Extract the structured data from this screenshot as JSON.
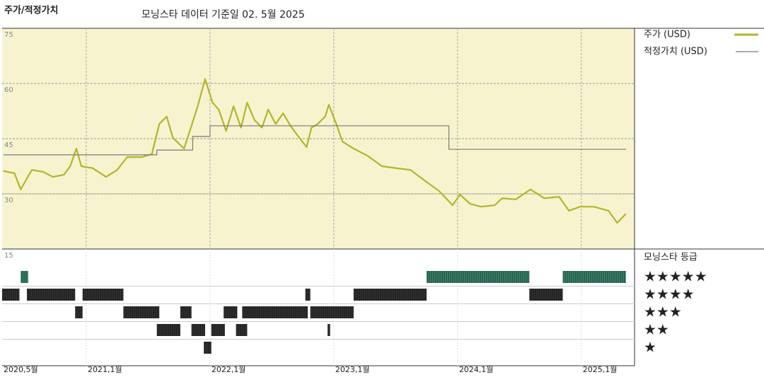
{
  "chart_data": {
    "type": "line",
    "title": "주가/적정가치",
    "subtitle": "모닝스타 데이터 기준일 02. 5월 2025",
    "xlim": [
      2020.32,
      2025.43
    ],
    "xticks": [
      {
        "value": 2020.33,
        "label": "2020,5월"
      },
      {
        "value": 2021,
        "label": "2021,1월"
      },
      {
        "value": 2022,
        "label": "2022,1월"
      },
      {
        "value": 2023,
        "label": "2023,1월"
      },
      {
        "value": 2024,
        "label": "2024,1월"
      },
      {
        "value": 2025,
        "label": "2025,1월"
      }
    ],
    "ylim": [
      15,
      75
    ],
    "yticks": [
      15,
      30,
      45,
      60,
      75
    ],
    "grid": true,
    "series": [
      {
        "name": "주가 (USD)",
        "color": "#b3b52a",
        "x": [
          2020.33,
          2020.42,
          2020.47,
          2020.56,
          2020.65,
          2020.73,
          2020.82,
          2020.87,
          2020.92,
          2020.96,
          2021.05,
          2021.16,
          2021.25,
          2021.33,
          2021.45,
          2021.53,
          2021.59,
          2021.65,
          2021.7,
          2021.79,
          2021.85,
          2021.9,
          2021.96,
          2022.02,
          2022.07,
          2022.13,
          2022.19,
          2022.25,
          2022.3,
          2022.36,
          2022.42,
          2022.47,
          2022.53,
          2022.59,
          2022.65,
          2022.7,
          2022.78,
          2022.82,
          2022.87,
          2022.93,
          2022.96,
          2023.02,
          2023.07,
          2023.16,
          2023.27,
          2023.39,
          2023.5,
          2023.62,
          2023.73,
          2023.85,
          2023.96,
          2024.02,
          2024.1,
          2024.19,
          2024.3,
          2024.36,
          2024.47,
          2024.59,
          2024.7,
          2024.82,
          2024.9,
          2024.99,
          2025.1,
          2025.22,
          2025.29,
          2025.36
        ],
        "values": [
          36.2,
          35.6,
          31.2,
          36.5,
          36,
          34.6,
          35.2,
          37.5,
          42.3,
          37.5,
          37,
          34.6,
          36.5,
          40,
          40,
          40.8,
          49,
          51,
          45.2,
          42.3,
          48.5,
          53.8,
          61.2,
          54.8,
          52.9,
          47.1,
          53.8,
          48,
          54.8,
          50,
          48,
          52.9,
          49,
          51.9,
          48.5,
          46.2,
          42.7,
          48,
          49,
          51,
          54.2,
          49,
          44.2,
          42.3,
          40.4,
          37.5,
          37,
          36.5,
          33.7,
          30.8,
          26.9,
          29.8,
          27.3,
          26.5,
          26.9,
          28.8,
          28.5,
          31.2,
          28.8,
          29.2,
          25.4,
          26.5,
          26.5,
          25.4,
          22.1,
          24.6
        ]
      },
      {
        "name": "적정가치 (USD)",
        "color": "#7a7a7a",
        "step": true,
        "x": [
          2020.33,
          2021.57,
          2021.86,
          2022.0,
          2023.93,
          2025.36
        ],
        "values": [
          40.6,
          41.9,
          45.6,
          48.5,
          42.1,
          42.1
        ]
      }
    ],
    "ratings": {
      "title": "모닝스타 등급",
      "levels": [
        {
          "stars": 5,
          "label": "★★★★★",
          "color": "#3b8a70"
        },
        {
          "stars": 4,
          "label": "★★★★",
          "color": "#333333"
        },
        {
          "stars": 3,
          "label": "★★★",
          "color": "#333333"
        },
        {
          "stars": 2,
          "label": "★★",
          "color": "#333333"
        },
        {
          "stars": 1,
          "label": "★",
          "color": "#333333"
        }
      ],
      "periods": [
        {
          "start": 2020.47,
          "end": 2020.53,
          "stars": 5
        },
        {
          "start": 2023.75,
          "end": 2024.58,
          "stars": 5
        },
        {
          "start": 2024.85,
          "end": 2025.36,
          "stars": 5
        },
        {
          "start": 2020.32,
          "end": 2020.46,
          "stars": 4
        },
        {
          "start": 2020.52,
          "end": 2020.91,
          "stars": 4
        },
        {
          "start": 2020.97,
          "end": 2021.3,
          "stars": 4
        },
        {
          "start": 2022.77,
          "end": 2022.81,
          "stars": 4
        },
        {
          "start": 2023.16,
          "end": 2023.75,
          "stars": 4
        },
        {
          "start": 2024.58,
          "end": 2024.85,
          "stars": 4
        },
        {
          "start": 2020.91,
          "end": 2020.97,
          "stars": 3
        },
        {
          "start": 2021.3,
          "end": 2021.59,
          "stars": 3
        },
        {
          "start": 2021.76,
          "end": 2021.85,
          "stars": 3
        },
        {
          "start": 2022.11,
          "end": 2022.22,
          "stars": 3
        },
        {
          "start": 2022.26,
          "end": 2022.79,
          "stars": 3
        },
        {
          "start": 2022.81,
          "end": 2023.16,
          "stars": 3
        },
        {
          "start": 2021.57,
          "end": 2021.76,
          "stars": 2
        },
        {
          "start": 2021.85,
          "end": 2021.96,
          "stars": 2
        },
        {
          "start": 2022.01,
          "end": 2022.12,
          "stars": 2
        },
        {
          "start": 2022.21,
          "end": 2022.3,
          "stars": 2
        },
        {
          "start": 2022.95,
          "end": 2022.97,
          "stars": 2
        },
        {
          "start": 2021.95,
          "end": 2022.01,
          "stars": 1
        }
      ]
    }
  }
}
